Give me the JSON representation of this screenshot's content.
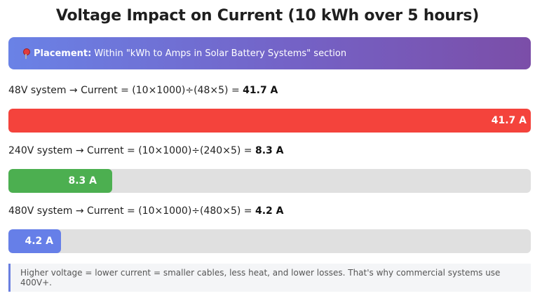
{
  "title": "Voltage Impact on Current (10 kWh over 5 hours)",
  "banner": {
    "icon": "pushpin-icon",
    "label": "Placement:",
    "text": "Within \"kWh to Amps in Solar Battery Systems\" section"
  },
  "chart_data": {
    "type": "bar",
    "title": "Voltage Impact on Current (10 kWh over 5 hours)",
    "max_value": 41.7,
    "rows": [
      {
        "prefix": "48V system → Current = (10×1000)÷(48×5) = ",
        "result": "41.7 A",
        "value": 41.7,
        "bar_label": "41.7 A",
        "color": "#f4433c"
      },
      {
        "prefix": "240V system → Current = (10×1000)÷(240×5) = ",
        "result": "8.3 A",
        "value": 8.3,
        "bar_label": "8.3 A",
        "color": "#4caf50"
      },
      {
        "prefix": "480V system → Current = (10×1000)÷(480×5) = ",
        "result": "4.2 A",
        "value": 4.2,
        "bar_label": "4.2 A",
        "color": "#667fe8"
      }
    ]
  },
  "note": {
    "text": "Higher voltage = lower current = smaller cables, less heat, and lower losses. That's why commercial systems use 400V+."
  },
  "colors": {
    "banner_start": "#6a82e6",
    "banner_end": "#7b4ea8",
    "track": "#e0e0e0",
    "note_accent": "#6a7fe0"
  }
}
